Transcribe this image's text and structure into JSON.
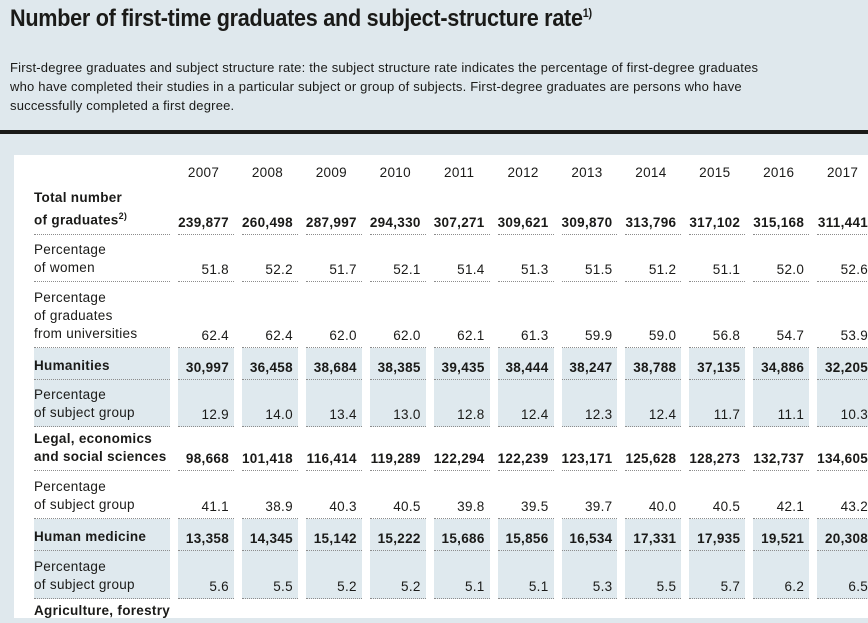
{
  "page": {
    "title": "Number of first-time graduates and subject-structure rate",
    "title_sup": "1)",
    "description_lines": [
      "First-degree graduates and subject structure rate: the subject structure rate indicates the percentage of first-degree graduates",
      "who have completed their studies in a particular subject or group of subjects. First-degree graduates are persons who have",
      "successfully completed a first degree."
    ],
    "colors": {
      "background": "#dfe8ed",
      "panel": "#ffffff",
      "row_shading": "#dfe9ee",
      "text": "#1a1a18",
      "rule": "#1a1a18",
      "dotted_line": "#8c8c8c"
    }
  },
  "table": {
    "years": [
      "2007",
      "2008",
      "2009",
      "2010",
      "2011",
      "2012",
      "2013",
      "2014",
      "2015",
      "2016",
      "2017"
    ],
    "rows": [
      {
        "label_lines": [
          "Total number",
          "of graduates"
        ],
        "label_sup": "2)",
        "bold": true,
        "shaded": false,
        "values": [
          "239,877",
          "260,498",
          "287,997",
          "294,330",
          "307,271",
          "309,621",
          "309,870",
          "313,796",
          "317,102",
          "315,168",
          "311,441"
        ]
      },
      {
        "label_lines": [
          "Percentage",
          "of women"
        ],
        "bold": false,
        "shaded": false,
        "values": [
          "51.8",
          "52.2",
          "51.7",
          "52.1",
          "51.4",
          "51.3",
          "51.5",
          "51.2",
          "51.1",
          "52.0",
          "52.6"
        ]
      },
      {
        "label_lines": [
          "Percentage",
          "of graduates",
          "from universities"
        ],
        "bold": false,
        "shaded": false,
        "values": [
          "62.4",
          "62.4",
          "62.0",
          "62.0",
          "62.1",
          "61.3",
          "59.9",
          "59.0",
          "56.8",
          "54.7",
          "53.9"
        ]
      },
      {
        "label_lines": [
          "Humanities"
        ],
        "bold": true,
        "shaded": true,
        "values": [
          "30,997",
          "36,458",
          "38,684",
          "38,385",
          "39,435",
          "38,444",
          "38,247",
          "38,788",
          "37,135",
          "34,886",
          "32,205"
        ]
      },
      {
        "label_lines": [
          "Percentage",
          "of subject group"
        ],
        "bold": false,
        "shaded": true,
        "values": [
          "12.9",
          "14.0",
          "13.4",
          "13.0",
          "12.8",
          "12.4",
          "12.3",
          "12.4",
          "11.7",
          "11.1",
          "10.3"
        ]
      },
      {
        "label_lines": [
          "Legal, economics",
          "and social sciences"
        ],
        "bold": true,
        "shaded": false,
        "values": [
          "98,668",
          "101,418",
          "116,414",
          "119,289",
          "122,294",
          "122,239",
          "123,171",
          "125,628",
          "128,273",
          "132,737",
          "134,605"
        ]
      },
      {
        "label_lines": [
          "Percentage",
          "of subject group"
        ],
        "bold": false,
        "shaded": false,
        "values": [
          "41.1",
          "38.9",
          "40.3",
          "40.5",
          "39.8",
          "39.5",
          "39.7",
          "40.0",
          "40.5",
          "42.1",
          "43.2"
        ]
      },
      {
        "label_lines": [
          "Human medicine"
        ],
        "bold": true,
        "shaded": true,
        "values": [
          "13,358",
          "14,345",
          "15,142",
          "15,222",
          "15,686",
          "15,856",
          "16,534",
          "17,331",
          "17,935",
          "19,521",
          "20,308"
        ]
      },
      {
        "label_lines": [
          "Percentage",
          "of subject group"
        ],
        "bold": false,
        "shaded": true,
        "values": [
          "5.6",
          "5.5",
          "5.2",
          "5.2",
          "5.1",
          "5.1",
          "5.3",
          "5.5",
          "5.7",
          "6.2",
          "6.5"
        ]
      },
      {
        "label_lines": [
          "Agriculture, forestry"
        ],
        "bold": true,
        "shaded": false,
        "cut_off": true,
        "values": []
      }
    ]
  }
}
